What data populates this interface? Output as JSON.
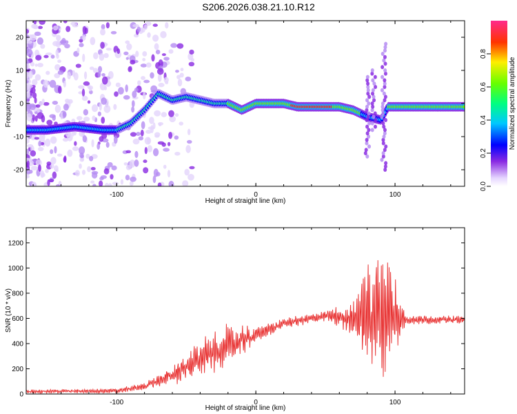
{
  "title": "S206.2026.038.21.10.R12",
  "chart_data": [
    {
      "type": "heatmap",
      "xlabel": "Height of straight line (km)",
      "ylabel": "Frequency (Hz)",
      "xlim": [
        -165,
        150
      ],
      "ylim": [
        -25,
        25
      ],
      "xticks": [
        -100,
        0,
        100
      ],
      "yticks": [
        -20,
        -10,
        0,
        10,
        20
      ],
      "colorbar": {
        "label": "Normalized spectral amplitude",
        "range": [
          0,
          1
        ],
        "ticks": [
          "0.0",
          "0.2",
          "0.4",
          "0.6",
          "0.8"
        ]
      },
      "ridge_trace": [
        {
          "x": -165,
          "y": -8
        },
        {
          "x": -150,
          "y": -8
        },
        {
          "x": -130,
          "y": -7
        },
        {
          "x": -110,
          "y": -8
        },
        {
          "x": -100,
          "y": -8
        },
        {
          "x": -90,
          "y": -6
        },
        {
          "x": -80,
          "y": -2
        },
        {
          "x": -70,
          "y": 3
        },
        {
          "x": -60,
          "y": 1
        },
        {
          "x": -50,
          "y": 2
        },
        {
          "x": -40,
          "y": 1
        },
        {
          "x": -30,
          "y": 0
        },
        {
          "x": -20,
          "y": 0
        },
        {
          "x": -10,
          "y": -2
        },
        {
          "x": 0,
          "y": 0
        },
        {
          "x": 10,
          "y": 0
        },
        {
          "x": 20,
          "y": 0
        },
        {
          "x": 30,
          "y": -1
        },
        {
          "x": 40,
          "y": -1
        },
        {
          "x": 50,
          "y": -1
        },
        {
          "x": 60,
          "y": -1
        },
        {
          "x": 70,
          "y": -2
        },
        {
          "x": 80,
          "y": -4
        },
        {
          "x": 90,
          "y": -5
        },
        {
          "x": 95,
          "y": -1
        },
        {
          "x": 110,
          "y": -1
        },
        {
          "x": 130,
          "y": -1
        },
        {
          "x": 150,
          "y": -1
        }
      ]
    },
    {
      "type": "line",
      "xlabel": "Height of straight line (km)",
      "ylabel": "SNR (10 * v/v)",
      "xlim": [
        -165,
        150
      ],
      "ylim": [
        0,
        1320
      ],
      "xticks": [
        -100,
        0,
        100
      ],
      "yticks": [
        0,
        200,
        400,
        600,
        800,
        1000,
        1200
      ],
      "color": "#e83232",
      "envelope": [
        {
          "x": -165,
          "mean": 20,
          "amp": 15
        },
        {
          "x": -100,
          "mean": 25,
          "amp": 20
        },
        {
          "x": -80,
          "mean": 60,
          "amp": 30
        },
        {
          "x": -60,
          "mean": 150,
          "amp": 80
        },
        {
          "x": -40,
          "mean": 280,
          "amp": 150
        },
        {
          "x": -20,
          "mean": 380,
          "amp": 180
        },
        {
          "x": 0,
          "mean": 470,
          "amp": 60
        },
        {
          "x": 20,
          "mean": 560,
          "amp": 40
        },
        {
          "x": 50,
          "mean": 620,
          "amp": 40
        },
        {
          "x": 70,
          "mean": 600,
          "amp": 150
        },
        {
          "x": 85,
          "mean": 650,
          "amp": 500
        },
        {
          "x": 92,
          "mean": 650,
          "amp": 650
        },
        {
          "x": 100,
          "mean": 620,
          "amp": 350
        },
        {
          "x": 108,
          "mean": 590,
          "amp": 40
        },
        {
          "x": 150,
          "mean": 590,
          "amp": 30
        }
      ]
    }
  ]
}
